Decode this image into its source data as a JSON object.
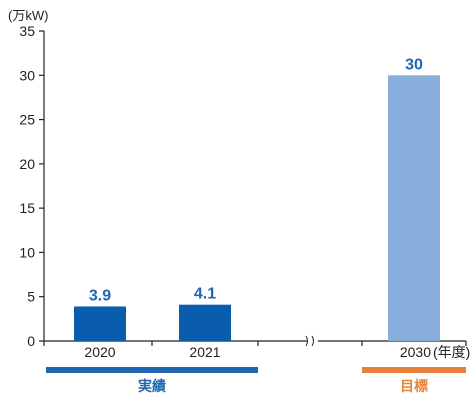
{
  "chart_data": {
    "type": "bar",
    "y_unit": "(万kW)",
    "x_unit": "(年度)",
    "ylim": [
      0,
      35
    ],
    "y_ticks": [
      "0",
      "5",
      "10",
      "15",
      "20",
      "25",
      "30",
      "35"
    ],
    "categories": [
      "2020",
      "2021",
      "2030"
    ],
    "values": [
      3.9,
      4.1,
      30
    ],
    "value_labels": [
      "3.9",
      "4.1",
      "30"
    ],
    "axis_break": "between 2021 and 2030",
    "groups": [
      {
        "label": "実績",
        "categories": [
          "2020",
          "2021"
        ],
        "color": "#1f67b1"
      },
      {
        "label": "目標",
        "categories": [
          "2030"
        ],
        "color": "#e8823a"
      }
    ],
    "bar_colors": [
      "#0a5cad",
      "#0a5cad",
      "#8aaedb"
    ],
    "value_label_color": "#1f67b1",
    "grid": false
  }
}
